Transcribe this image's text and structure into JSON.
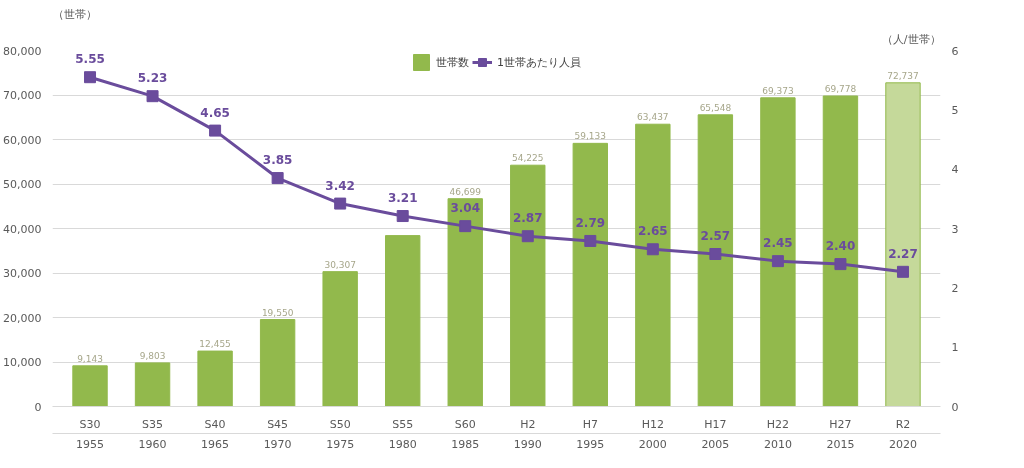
{
  "chart_data": {
    "type": "bar",
    "categories": [
      "S30\n1955",
      "S35\n1960",
      "S40\n1965",
      "S45\n1970",
      "S50\n1975",
      "S55\n1980",
      "S60\n1985",
      "H2\n1990",
      "H7\n1995",
      "H12\n2000",
      "H17\n2005",
      "H22\n2010",
      "H27\n2015",
      "R2\n2020"
    ],
    "ylabel": "（世帯）",
    "y2label": "（人/世帯）",
    "series": [
      {
        "name": "世帯数",
        "color": "#92b94c",
        "colors": [
          "#92b94c",
          "#92b94c",
          "#92b94c",
          "#92b94c",
          "#92b94c",
          "#92b94c",
          "#92b94c",
          "#92b94c",
          "#92b94c",
          "#92b94c",
          "#92b94c",
          "#92b94c",
          "#92b94c",
          "#c5d99a"
        ],
        "values": [
          9143,
          9803,
          12455,
          19550,
          30307,
          38400,
          46699,
          54225,
          59133,
          63437,
          65548,
          69373,
          69778,
          72737
        ],
        "value_labels": [
          "9,143",
          "9,803",
          "12,455",
          "19,550",
          "30,307",
          null,
          "46,699",
          "54,225",
          "59,133",
          "63,437",
          "65,548",
          "69,373",
          "69,778",
          "72,737"
        ]
      },
      {
        "name": "1世帯あたり人員",
        "type": "line",
        "axis": "y2",
        "color": "#6a4c9c",
        "marker": "square",
        "values": [
          5.55,
          5.23,
          4.65,
          3.85,
          3.42,
          3.21,
          3.04,
          2.87,
          2.79,
          2.65,
          2.57,
          2.45,
          2.4,
          2.27
        ],
        "value_labels": [
          "5.55",
          "5.23",
          "4.65",
          "3.85",
          "3.42",
          "3.21",
          "3.04",
          "2.87",
          "2.79",
          "2.65",
          "2.57",
          "2.45",
          "2.40",
          "2.27"
        ]
      }
    ],
    "ylim": [
      0,
      80000
    ],
    "yticks": [
      {
        "value": 0,
        "label": "0"
      },
      {
        "value": 10000,
        "label": "10,000"
      },
      {
        "value": 20000,
        "label": "20,000"
      },
      {
        "value": 30000,
        "label": "30,000"
      },
      {
        "value": 40000,
        "label": "40,000"
      },
      {
        "value": 50000,
        "label": "50,000"
      },
      {
        "value": 60000,
        "label": "60,000"
      },
      {
        "value": 70000,
        "label": "70,000"
      },
      {
        "value": 80000,
        "label": "80,000"
      }
    ],
    "y2lim": [
      0,
      6
    ],
    "y2ticks": [
      0,
      1,
      2,
      3,
      4,
      5,
      6
    ],
    "grid": "y",
    "legend": "top"
  }
}
